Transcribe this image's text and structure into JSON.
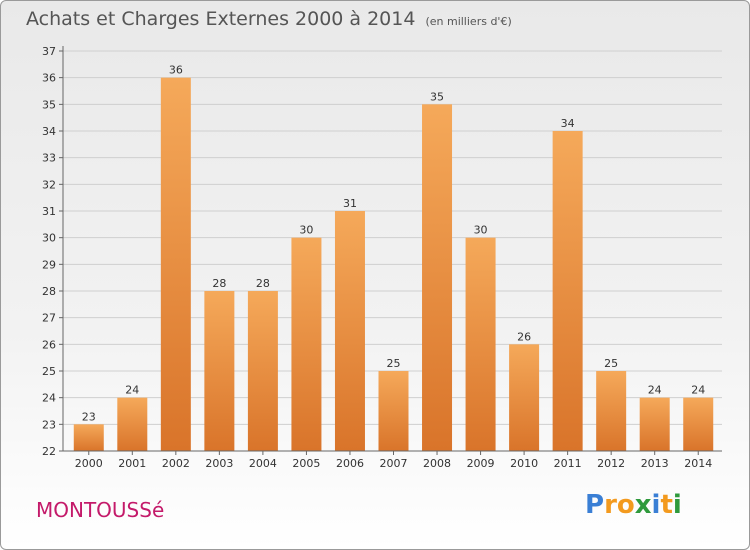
{
  "title": "Achats et Charges Externes 2000 à 2014",
  "subtitle": "(en milliers d'€)",
  "commune": "MONTOUSSé",
  "logo": {
    "letters": [
      {
        "ch": "P",
        "color": "#3a7fd5"
      },
      {
        "ch": "r",
        "color": "#f39a1e"
      },
      {
        "ch": "o",
        "color": "#f39a1e"
      },
      {
        "ch": "x",
        "color": "#2f9a3c"
      },
      {
        "ch": "i",
        "color": "#3a7fd5"
      },
      {
        "ch": "t",
        "color": "#f39a1e"
      },
      {
        "ch": "i",
        "color": "#2f9a3c"
      }
    ]
  },
  "chart_data": {
    "type": "bar",
    "categories": [
      "2000",
      "2001",
      "2002",
      "2003",
      "2004",
      "2005",
      "2006",
      "2007",
      "2008",
      "2009",
      "2010",
      "2011",
      "2012",
      "2013",
      "2014"
    ],
    "values": [
      23,
      24,
      36,
      28,
      28,
      30,
      31,
      25,
      35,
      30,
      26,
      34,
      25,
      24,
      24
    ],
    "ylim": [
      22,
      37
    ],
    "yticks": [
      22,
      23,
      24,
      25,
      26,
      27,
      28,
      29,
      30,
      31,
      32,
      33,
      34,
      35,
      36,
      37
    ],
    "grid": true,
    "colors": {
      "bar_top": "#f5a95a",
      "bar_bottom": "#d9742a",
      "grid": "#cfcfcf"
    }
  }
}
